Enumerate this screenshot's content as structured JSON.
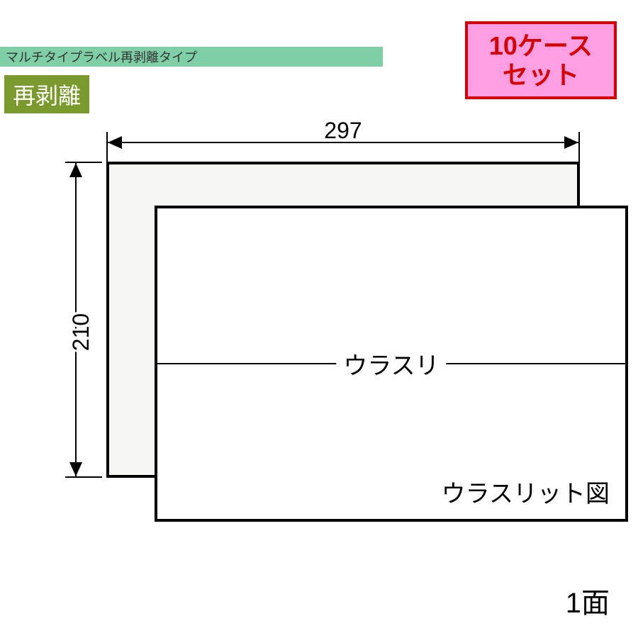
{
  "header": {
    "bar_text": "マルチタイプラベル再剥離タイプ",
    "bar_bg": "#7fcfa6",
    "bar_text_color": "#333333",
    "badge_text": "再剥離",
    "badge_bg": "#7a9a2e",
    "badge_text_color": "#ffffff"
  },
  "promo": {
    "line1": "10ケース",
    "line2": "セット",
    "bg": "#ff9ee0",
    "border_color": "#d60000",
    "text_color": "#d60000"
  },
  "diagram": {
    "width_mm": "297",
    "height_mm": "210",
    "slit_label": "ウラスリ",
    "caption": "ウラスリット図",
    "back_fill": "#f6f6f5",
    "front_fill": "#ffffff",
    "line_color": "#000000"
  },
  "footer": {
    "page_count": "1面"
  }
}
